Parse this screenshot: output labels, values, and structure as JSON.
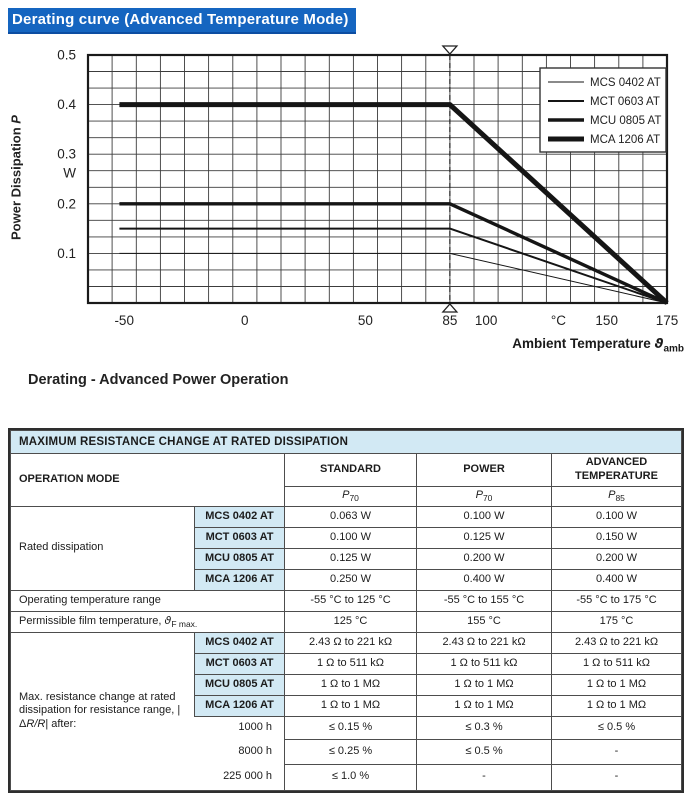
{
  "header": {
    "title": "Derating curve (Advanced Temperature Mode)",
    "highlight_color": "#1565c0"
  },
  "caption": "Derating - Advanced Power Operation",
  "chart_data": {
    "type": "line",
    "title": "Derating - Advanced Power Operation",
    "xlabel": "Ambient Temperature ϑamb",
    "ylabel": "Power Dissipation P",
    "x_unit": "°C",
    "y_unit": "W",
    "xlim": [
      -65,
      175
    ],
    "ylim": [
      0,
      0.5
    ],
    "grid": true,
    "legend_position": "top-right",
    "reference_temp": 85,
    "series": [
      {
        "name": "MCS 0402 AT",
        "stroke_width": 1,
        "points": [
          [
            -52,
            0.1
          ],
          [
            85,
            0.1
          ],
          [
            175,
            0
          ]
        ]
      },
      {
        "name": "MCT 0603 AT",
        "stroke_width": 2,
        "points": [
          [
            -52,
            0.15
          ],
          [
            85,
            0.15
          ],
          [
            175,
            0
          ]
        ]
      },
      {
        "name": "MCU 0805 AT",
        "stroke_width": 3.4,
        "points": [
          [
            -52,
            0.2
          ],
          [
            85,
            0.2
          ],
          [
            175,
            0
          ]
        ]
      },
      {
        "name": "MCA 1206 AT",
        "stroke_width": 5,
        "points": [
          [
            -52,
            0.4
          ],
          [
            85,
            0.4
          ],
          [
            175,
            0
          ]
        ]
      }
    ],
    "x_tick_labels": [
      {
        "label": "-50",
        "t": -50
      },
      {
        "label": "0",
        "t": 0
      },
      {
        "label": "50",
        "t": 50
      },
      {
        "label": "85",
        "t": 85
      },
      {
        "label": "100",
        "t": 100
      },
      {
        "label": "°C",
        "t": 130
      },
      {
        "label": "150",
        "t": 150
      },
      {
        "label": "175",
        "t": 175
      }
    ],
    "y_tick_labels": [
      {
        "label": "0.5",
        "p": 0.5
      },
      {
        "label": "0.4",
        "p": 0.4
      },
      {
        "label": "0.3",
        "p": 0.3
      },
      {
        "label": "W",
        "p": 0.262,
        "is_unit": true
      },
      {
        "label": "0.2",
        "p": 0.2
      },
      {
        "label": "0.1",
        "p": 0.1
      }
    ],
    "ylabel_parts": {
      "text": "Power Dissipation ",
      "italic": "P"
    },
    "xlabel_parts": {
      "text": "Ambient Temperature ",
      "symbol": "ϑ",
      "sub": "amb"
    }
  },
  "table": {
    "title": "MAXIMUM RESISTANCE CHANGE AT RATED DISSIPATION",
    "accent_color": "#d2e9f4",
    "col_headers": [
      "OPERATION MODE",
      "STANDARD",
      "POWER",
      "ADVANCED TEMPERATURE"
    ],
    "p_row": [
      {
        "base": "P",
        "sub": "70"
      },
      {
        "base": "P",
        "sub": "70"
      },
      {
        "base": "P",
        "sub": "85"
      }
    ],
    "rated": {
      "label": "Rated dissipation",
      "rows": [
        {
          "model": "MCS 0402 AT",
          "standard": "0.063 W",
          "power": "0.100 W",
          "advanced": "0.100 W"
        },
        {
          "model": "MCT 0603 AT",
          "standard": "0.100 W",
          "power": "0.125 W",
          "advanced": "0.150 W"
        },
        {
          "model": "MCU 0805 AT",
          "standard": "0.125 W",
          "power": "0.200 W",
          "advanced": "0.200 W"
        },
        {
          "model": "MCA 1206 AT",
          "standard": "0.250 W",
          "power": "0.400 W",
          "advanced": "0.400 W"
        }
      ]
    },
    "operating_range": {
      "label": "Operating temperature range",
      "standard": "-55 °C to 125 °C",
      "power": "-55 °C to 155 °C",
      "advanced": "-55 °C to 175 °C"
    },
    "film_temp": {
      "label_prefix": "Permissible film temperature, ",
      "symbol": "ϑ",
      "symbol_sub": "F max.",
      "standard": "125 °C",
      "power": "155 °C",
      "advanced": "175 °C"
    },
    "resistance_change": {
      "label_prefix": "Max. resistance change at rated dissipation for resistance range, |Δ",
      "label_italic": "R/R",
      "label_suffix": "| after:",
      "rows": [
        {
          "model": "MCS 0402 AT",
          "standard": "2.43 Ω to 221 kΩ",
          "power": "2.43 Ω to 221 kΩ",
          "advanced": "2.43 Ω to 221 kΩ"
        },
        {
          "model": "MCT 0603 AT",
          "standard": "1 Ω to 511 kΩ",
          "power": "1 Ω to 511 kΩ",
          "advanced": "1 Ω to 511 kΩ"
        },
        {
          "model": "MCU 0805 AT",
          "standard": "1 Ω to 1 MΩ",
          "power": "1 Ω to 1 MΩ",
          "advanced": "1 Ω to 1 MΩ"
        },
        {
          "model": "MCA 1206 AT",
          "standard": "1 Ω to 1 MΩ",
          "power": "1 Ω to 1 MΩ",
          "advanced": "1 Ω to 1 MΩ"
        }
      ],
      "time_rows": [
        {
          "label": "1000 h",
          "standard": "≤ 0.15 %",
          "power": "≤ 0.3 %",
          "advanced": "≤ 0.5 %"
        },
        {
          "label": "8000 h",
          "standard": "≤ 0.25 %",
          "power": "≤ 0.5 %",
          "advanced": "-"
        },
        {
          "label": "225 000 h",
          "standard": "≤ 1.0 %",
          "power": "-",
          "advanced": "-"
        }
      ]
    }
  }
}
